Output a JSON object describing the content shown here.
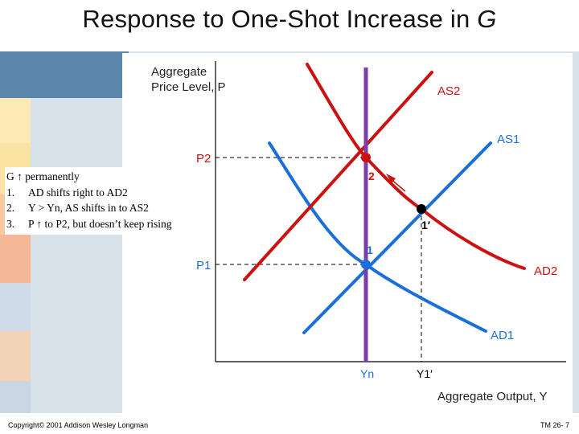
{
  "slide": {
    "title_main": "Response to One-Shot Increase in ",
    "title_var": "G",
    "footer_left": "Copyright© 2001 Addison Wesley Longman",
    "footer_right": "TM 26- 7"
  },
  "notes": [
    {
      "num": "",
      "text": "G ↑ permanently"
    },
    {
      "num": "1.",
      "text": "AD shifts right to AD2"
    },
    {
      "num": "2.",
      "text": "Y > Yn, AS shifts in to AS2"
    },
    {
      "num": "3.",
      "text": "P ↑ to P2, but doesn’t keep rising"
    }
  ],
  "diagram": {
    "y_axis_label_line1": "Aggregate",
    "y_axis_label_line2": "Price Level, P",
    "x_axis_label": "Aggregate Output, Y",
    "curve_labels": {
      "as1": "AS1",
      "as2": "AS2",
      "ad1": "AD1",
      "ad2": "AD2"
    },
    "axis_marks": {
      "p1": "P1",
      "p2": "P2",
      "yn": "Yn",
      "y1p": "Y1′"
    },
    "points": {
      "pt1": "1",
      "pt1p": "1′",
      "pt2": "2"
    },
    "colors": {
      "as_curves": "#1a6fd8",
      "ad_curves_red": "#cc1111",
      "vertical_lrs": "#7a3ea8",
      "guides": "#000000",
      "axis_label_red": "#cc1111"
    }
  }
}
